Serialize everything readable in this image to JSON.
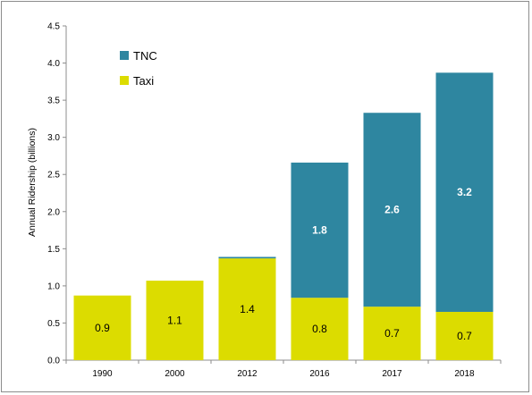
{
  "chart_data": {
    "type": "bar",
    "stacked": true,
    "categories": [
      "1990",
      "2000",
      "2012",
      "2016",
      "2017",
      "2018"
    ],
    "series": [
      {
        "name": "Taxi",
        "color": "#dcdc00",
        "values": [
          0.87,
          1.07,
          1.37,
          0.84,
          0.72,
          0.65
        ],
        "labels": [
          "0.9",
          "1.1",
          "1.4",
          "0.8",
          "0.7",
          "0.7"
        ]
      },
      {
        "name": "TNC",
        "color": "#2e86a0",
        "values": [
          0,
          0,
          0.02,
          1.82,
          2.61,
          3.22
        ],
        "labels": [
          "",
          "",
          "",
          "1.8",
          "2.6",
          "3.2"
        ]
      }
    ],
    "ylabel": "Annual Ridership (billions)",
    "xlabel": "",
    "title": "",
    "ylim": [
      0,
      4.5
    ],
    "yticks": [
      0,
      0.5,
      1,
      1.5,
      2,
      2.5,
      3,
      3.5,
      4,
      4.5
    ],
    "ytick_labels": [
      "0.0",
      "0.5",
      "1.0",
      "1.5",
      "2.0",
      "2.5",
      "3.0",
      "3.5",
      "4.0",
      "4.5"
    ],
    "grid": false,
    "legend": {
      "placement": "top-left",
      "order": [
        "TNC",
        "Taxi"
      ]
    }
  }
}
